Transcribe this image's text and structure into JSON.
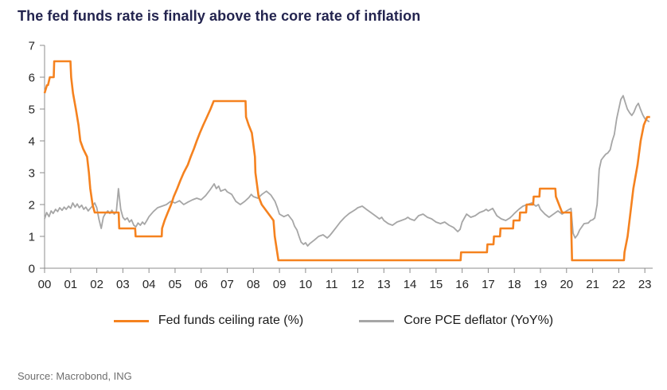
{
  "title": "The fed funds rate is finally above the core rate of inflation",
  "source": "Source: Macrobond, ING",
  "colors": {
    "title": "#23244F",
    "axis": "#8C8C8C",
    "tick_label": "#262626",
    "legend_text": "#1a1a1a",
    "source_text": "#6E6E6E"
  },
  "chart_data": {
    "type": "line",
    "title": "The fed funds rate is finally above the core rate of inflation",
    "xlabel": "",
    "ylabel": "",
    "legend_position": "bottom",
    "grid": false,
    "x_axis": {
      "min": 2000,
      "max": 2023.3,
      "tick_labels": [
        "00",
        "01",
        "02",
        "03",
        "04",
        "05",
        "06",
        "07",
        "08",
        "09",
        "10",
        "11",
        "12",
        "13",
        "14",
        "15",
        "16",
        "17",
        "18",
        "19",
        "20",
        "21",
        "22",
        "23"
      ]
    },
    "y_axis": {
      "min": 0,
      "max": 7,
      "ticks": [
        0,
        1,
        2,
        3,
        4,
        5,
        6,
        7
      ]
    },
    "series": [
      {
        "name": "Fed funds ceiling rate (%)",
        "key": "fed-funds-ceiling-rate",
        "color": "#F5821F",
        "width": 2.6,
        "points": [
          [
            2000.0,
            5.5
          ],
          [
            2000.09,
            5.75
          ],
          [
            2000.13,
            5.75
          ],
          [
            2000.2,
            6.0
          ],
          [
            2000.35,
            6.0
          ],
          [
            2000.37,
            6.5
          ],
          [
            2000.99,
            6.5
          ],
          [
            2001.02,
            6.0
          ],
          [
            2001.09,
            5.5
          ],
          [
            2001.2,
            5.0
          ],
          [
            2001.3,
            4.5
          ],
          [
            2001.37,
            4.0
          ],
          [
            2001.48,
            3.75
          ],
          [
            2001.63,
            3.5
          ],
          [
            2001.7,
            3.0
          ],
          [
            2001.75,
            2.5
          ],
          [
            2001.84,
            2.0
          ],
          [
            2001.92,
            1.75
          ],
          [
            2002.84,
            1.75
          ],
          [
            2002.86,
            1.25
          ],
          [
            2003.47,
            1.25
          ],
          [
            2003.49,
            1.0
          ],
          [
            2004.49,
            1.0
          ],
          [
            2004.5,
            1.25
          ],
          [
            2004.6,
            1.5
          ],
          [
            2004.72,
            1.75
          ],
          [
            2004.85,
            2.0
          ],
          [
            2004.95,
            2.25
          ],
          [
            2005.08,
            2.5
          ],
          [
            2005.2,
            2.75
          ],
          [
            2005.33,
            3.0
          ],
          [
            2005.49,
            3.25
          ],
          [
            2005.6,
            3.5
          ],
          [
            2005.72,
            3.75
          ],
          [
            2005.83,
            4.0
          ],
          [
            2005.95,
            4.25
          ],
          [
            2006.08,
            4.5
          ],
          [
            2006.22,
            4.75
          ],
          [
            2006.36,
            5.0
          ],
          [
            2006.48,
            5.25
          ],
          [
            2007.7,
            5.25
          ],
          [
            2007.72,
            4.75
          ],
          [
            2007.82,
            4.5
          ],
          [
            2007.94,
            4.25
          ],
          [
            2008.06,
            3.5
          ],
          [
            2008.08,
            3.0
          ],
          [
            2008.2,
            2.25
          ],
          [
            2008.32,
            2.0
          ],
          [
            2008.77,
            1.5
          ],
          [
            2008.82,
            1.0
          ],
          [
            2008.96,
            0.25
          ],
          [
            2015.94,
            0.25
          ],
          [
            2015.96,
            0.5
          ],
          [
            2016.95,
            0.5
          ],
          [
            2016.97,
            0.75
          ],
          [
            2017.2,
            0.75
          ],
          [
            2017.22,
            1.0
          ],
          [
            2017.45,
            1.0
          ],
          [
            2017.47,
            1.25
          ],
          [
            2017.95,
            1.25
          ],
          [
            2017.97,
            1.5
          ],
          [
            2018.2,
            1.5
          ],
          [
            2018.22,
            1.75
          ],
          [
            2018.45,
            1.75
          ],
          [
            2018.47,
            2.0
          ],
          [
            2018.72,
            2.0
          ],
          [
            2018.74,
            2.25
          ],
          [
            2018.96,
            2.25
          ],
          [
            2018.98,
            2.5
          ],
          [
            2019.57,
            2.5
          ],
          [
            2019.59,
            2.25
          ],
          [
            2019.71,
            2.0
          ],
          [
            2019.83,
            1.75
          ],
          [
            2020.17,
            1.75
          ],
          [
            2020.18,
            1.25
          ],
          [
            2020.21,
            0.25
          ],
          [
            2022.2,
            0.25
          ],
          [
            2022.22,
            0.5
          ],
          [
            2022.34,
            1.0
          ],
          [
            2022.45,
            1.75
          ],
          [
            2022.56,
            2.5
          ],
          [
            2022.72,
            3.25
          ],
          [
            2022.84,
            4.0
          ],
          [
            2022.96,
            4.5
          ],
          [
            2023.09,
            4.75
          ],
          [
            2023.2,
            4.75
          ]
        ]
      },
      {
        "name": "Core PCE deflator (YoY%)",
        "key": "core-pce-deflator",
        "color": "#A6A6A6",
        "width": 1.8,
        "points": [
          [
            2000.0,
            1.55
          ],
          [
            2000.08,
            1.75
          ],
          [
            2000.17,
            1.62
          ],
          [
            2000.25,
            1.8
          ],
          [
            2000.33,
            1.72
          ],
          [
            2000.42,
            1.85
          ],
          [
            2000.5,
            1.78
          ],
          [
            2000.58,
            1.9
          ],
          [
            2000.67,
            1.82
          ],
          [
            2000.75,
            1.92
          ],
          [
            2000.83,
            1.85
          ],
          [
            2000.92,
            1.95
          ],
          [
            2001.0,
            1.88
          ],
          [
            2001.08,
            2.05
          ],
          [
            2001.17,
            1.92
          ],
          [
            2001.25,
            2.02
          ],
          [
            2001.33,
            1.9
          ],
          [
            2001.42,
            1.98
          ],
          [
            2001.5,
            1.85
          ],
          [
            2001.58,
            1.92
          ],
          [
            2001.67,
            1.8
          ],
          [
            2001.75,
            1.88
          ],
          [
            2001.83,
            1.95
          ],
          [
            2001.92,
            2.05
          ],
          [
            2002.0,
            1.9
          ],
          [
            2002.08,
            1.55
          ],
          [
            2002.17,
            1.25
          ],
          [
            2002.25,
            1.6
          ],
          [
            2002.33,
            1.72
          ],
          [
            2002.42,
            1.8
          ],
          [
            2002.5,
            1.72
          ],
          [
            2002.58,
            1.82
          ],
          [
            2002.67,
            1.7
          ],
          [
            2002.75,
            1.78
          ],
          [
            2002.83,
            2.5
          ],
          [
            2002.92,
            1.85
          ],
          [
            2003.0,
            1.6
          ],
          [
            2003.08,
            1.52
          ],
          [
            2003.17,
            1.58
          ],
          [
            2003.25,
            1.45
          ],
          [
            2003.33,
            1.52
          ],
          [
            2003.42,
            1.35
          ],
          [
            2003.5,
            1.3
          ],
          [
            2003.58,
            1.42
          ],
          [
            2003.67,
            1.35
          ],
          [
            2003.75,
            1.45
          ],
          [
            2003.83,
            1.38
          ],
          [
            2003.92,
            1.5
          ],
          [
            2004.0,
            1.62
          ],
          [
            2004.17,
            1.78
          ],
          [
            2004.33,
            1.9
          ],
          [
            2004.5,
            1.95
          ],
          [
            2004.67,
            2.0
          ],
          [
            2004.83,
            2.1
          ],
          [
            2005.0,
            2.05
          ],
          [
            2005.17,
            2.12
          ],
          [
            2005.33,
            2.0
          ],
          [
            2005.5,
            2.08
          ],
          [
            2005.67,
            2.15
          ],
          [
            2005.83,
            2.2
          ],
          [
            2006.0,
            2.15
          ],
          [
            2006.17,
            2.28
          ],
          [
            2006.33,
            2.45
          ],
          [
            2006.5,
            2.65
          ],
          [
            2006.58,
            2.5
          ],
          [
            2006.67,
            2.58
          ],
          [
            2006.75,
            2.42
          ],
          [
            2006.92,
            2.48
          ],
          [
            2007.0,
            2.4
          ],
          [
            2007.17,
            2.32
          ],
          [
            2007.33,
            2.1
          ],
          [
            2007.5,
            2.0
          ],
          [
            2007.67,
            2.1
          ],
          [
            2007.83,
            2.22
          ],
          [
            2007.92,
            2.32
          ],
          [
            2008.0,
            2.25
          ],
          [
            2008.17,
            2.2
          ],
          [
            2008.33,
            2.32
          ],
          [
            2008.5,
            2.42
          ],
          [
            2008.67,
            2.3
          ],
          [
            2008.83,
            2.1
          ],
          [
            2008.92,
            1.9
          ],
          [
            2009.0,
            1.7
          ],
          [
            2009.17,
            1.62
          ],
          [
            2009.33,
            1.68
          ],
          [
            2009.5,
            1.5
          ],
          [
            2009.58,
            1.32
          ],
          [
            2009.67,
            1.2
          ],
          [
            2009.75,
            1.0
          ],
          [
            2009.83,
            0.82
          ],
          [
            2009.92,
            0.75
          ],
          [
            2010.0,
            0.8
          ],
          [
            2010.08,
            0.7
          ],
          [
            2010.17,
            0.78
          ],
          [
            2010.33,
            0.88
          ],
          [
            2010.5,
            1.0
          ],
          [
            2010.67,
            1.05
          ],
          [
            2010.83,
            0.95
          ],
          [
            2010.92,
            1.02
          ],
          [
            2011.0,
            1.1
          ],
          [
            2011.17,
            1.28
          ],
          [
            2011.33,
            1.45
          ],
          [
            2011.5,
            1.6
          ],
          [
            2011.67,
            1.72
          ],
          [
            2011.83,
            1.8
          ],
          [
            2011.92,
            1.85
          ],
          [
            2012.0,
            1.9
          ],
          [
            2012.17,
            1.95
          ],
          [
            2012.33,
            1.85
          ],
          [
            2012.5,
            1.75
          ],
          [
            2012.67,
            1.65
          ],
          [
            2012.83,
            1.55
          ],
          [
            2012.92,
            1.6
          ],
          [
            2013.0,
            1.5
          ],
          [
            2013.17,
            1.4
          ],
          [
            2013.33,
            1.35
          ],
          [
            2013.5,
            1.45
          ],
          [
            2013.67,
            1.5
          ],
          [
            2013.83,
            1.55
          ],
          [
            2013.92,
            1.6
          ],
          [
            2014.0,
            1.55
          ],
          [
            2014.17,
            1.5
          ],
          [
            2014.33,
            1.65
          ],
          [
            2014.5,
            1.7
          ],
          [
            2014.67,
            1.6
          ],
          [
            2014.83,
            1.55
          ],
          [
            2015.0,
            1.45
          ],
          [
            2015.17,
            1.4
          ],
          [
            2015.33,
            1.45
          ],
          [
            2015.5,
            1.35
          ],
          [
            2015.67,
            1.28
          ],
          [
            2015.83,
            1.15
          ],
          [
            2015.92,
            1.22
          ],
          [
            2016.0,
            1.45
          ],
          [
            2016.17,
            1.7
          ],
          [
            2016.33,
            1.6
          ],
          [
            2016.5,
            1.65
          ],
          [
            2016.67,
            1.75
          ],
          [
            2016.83,
            1.8
          ],
          [
            2016.92,
            1.85
          ],
          [
            2017.0,
            1.8
          ],
          [
            2017.17,
            1.88
          ],
          [
            2017.33,
            1.65
          ],
          [
            2017.5,
            1.55
          ],
          [
            2017.67,
            1.5
          ],
          [
            2017.83,
            1.58
          ],
          [
            2017.92,
            1.65
          ],
          [
            2018.0,
            1.72
          ],
          [
            2018.17,
            1.85
          ],
          [
            2018.33,
            1.95
          ],
          [
            2018.5,
            2.0
          ],
          [
            2018.67,
            2.05
          ],
          [
            2018.83,
            1.95
          ],
          [
            2018.92,
            2.0
          ],
          [
            2019.0,
            1.85
          ],
          [
            2019.17,
            1.7
          ],
          [
            2019.33,
            1.6
          ],
          [
            2019.5,
            1.7
          ],
          [
            2019.67,
            1.8
          ],
          [
            2019.83,
            1.7
          ],
          [
            2019.92,
            1.75
          ],
          [
            2020.0,
            1.8
          ],
          [
            2020.17,
            1.88
          ],
          [
            2020.25,
            1.1
          ],
          [
            2020.33,
            0.95
          ],
          [
            2020.42,
            1.05
          ],
          [
            2020.5,
            1.2
          ],
          [
            2020.67,
            1.4
          ],
          [
            2020.83,
            1.42
          ],
          [
            2020.92,
            1.5
          ],
          [
            2021.0,
            1.52
          ],
          [
            2021.08,
            1.58
          ],
          [
            2021.17,
            2.0
          ],
          [
            2021.25,
            3.1
          ],
          [
            2021.33,
            3.4
          ],
          [
            2021.42,
            3.5
          ],
          [
            2021.5,
            3.58
          ],
          [
            2021.58,
            3.62
          ],
          [
            2021.67,
            3.72
          ],
          [
            2021.75,
            4.0
          ],
          [
            2021.83,
            4.2
          ],
          [
            2021.92,
            4.7
          ],
          [
            2022.0,
            5.0
          ],
          [
            2022.08,
            5.3
          ],
          [
            2022.17,
            5.42
          ],
          [
            2022.25,
            5.2
          ],
          [
            2022.33,
            5.0
          ],
          [
            2022.42,
            4.88
          ],
          [
            2022.5,
            4.8
          ],
          [
            2022.58,
            4.9
          ],
          [
            2022.67,
            5.08
          ],
          [
            2022.75,
            5.18
          ],
          [
            2022.83,
            5.0
          ],
          [
            2022.92,
            4.82
          ],
          [
            2023.0,
            4.7
          ],
          [
            2023.08,
            4.65
          ],
          [
            2023.17,
            4.6
          ]
        ]
      }
    ]
  }
}
